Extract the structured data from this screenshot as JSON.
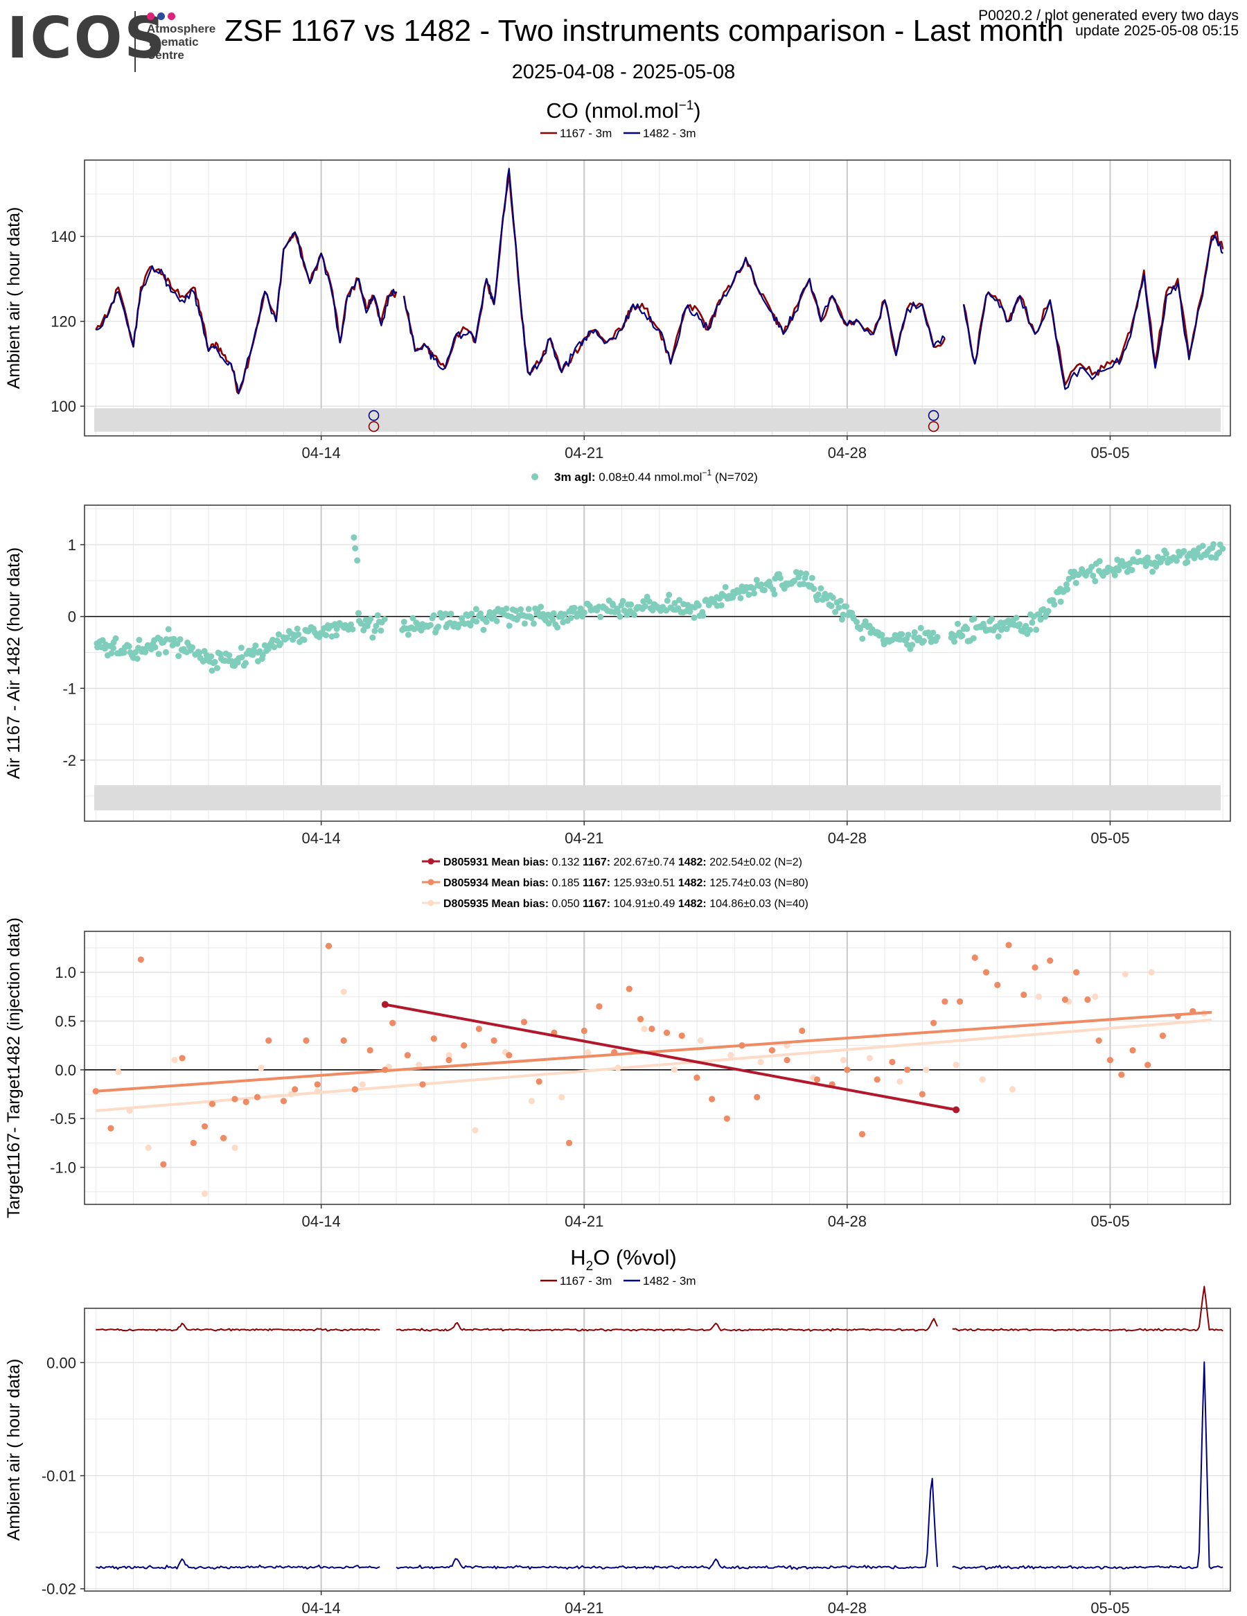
{
  "header": {
    "logo_text": "ICOS",
    "logo_sub": [
      "Atmosphere",
      "Thematic",
      "Centre"
    ],
    "logo_dot_colors": [
      "#e0227a",
      "#2c4b9b",
      "#e0227a"
    ],
    "title": "ZSF 1167 vs 1482 - Two instruments comparison - Last month",
    "info_line1": "P0020.2 / plot generated every two days",
    "info_line2": "update  2025-05-08 05:15",
    "date_range": "2025-04-08 - 2025-05-08"
  },
  "colors": {
    "i1167": "#8b0000",
    "i1482": "#000080",
    "diff": "#7fcdbb",
    "target_a": "#b2182b",
    "target_b": "#ef8a62",
    "target_c": "#fddbc7",
    "flag_band": "#dcdcdc",
    "grid": "#e8e8e8",
    "grid_major": "#c8c8c8"
  },
  "chart_data": [
    {
      "id": "co-ambient",
      "type": "line",
      "title_main": "CO (nmol.mol",
      "title_sup": "−1",
      "title_end": ")",
      "ylabel": "Ambient air ( hour data)",
      "legend": [
        {
          "label": "1167 - 3m",
          "color": "#8b0000"
        },
        {
          "label": "1482 - 3m",
          "color": "#000080"
        }
      ],
      "x_ticks": [
        "04-14",
        "04-21",
        "04-28",
        "05-05"
      ],
      "x_tick_days": [
        6,
        13,
        20,
        27
      ],
      "xlim": [
        -0.3,
        30.2
      ],
      "ylim": [
        93,
        158
      ],
      "y_ticks": [
        100,
        120,
        140
      ],
      "flag_band": [
        94,
        99.5
      ],
      "flag_markers": [
        {
          "day": 7.4,
          "y": 97.8,
          "color": "#000080"
        },
        {
          "day": 7.4,
          "y": 95.2,
          "color": "#8b0000"
        },
        {
          "day": 22.3,
          "y": 97.8,
          "color": "#000080"
        },
        {
          "day": 22.3,
          "y": 95.2,
          "color": "#8b0000"
        }
      ],
      "x_day": [
        0.0,
        0.3,
        0.6,
        1.0,
        1.2,
        1.5,
        1.8,
        2.0,
        2.3,
        2.6,
        2.8,
        3.0,
        3.2,
        3.4,
        3.6,
        3.8,
        4.1,
        4.5,
        4.8,
        5.0,
        5.3,
        5.7,
        6.0,
        6.3,
        6.5,
        6.7,
        7.0,
        7.2,
        7.4,
        7.6,
        7.8,
        8.0,
        "gap",
        8.2,
        8.5,
        8.8,
        9.0,
        9.3,
        9.6,
        9.9,
        10.1,
        10.4,
        10.6,
        10.8,
        11.0,
        11.3,
        11.5,
        11.8,
        12.1,
        12.4,
        12.7,
        13.0,
        13.3,
        13.6,
        14.0,
        14.3,
        14.6,
        15.0,
        15.3,
        15.7,
        16.0,
        16.3,
        16.6,
        16.9,
        17.3,
        17.6,
        18.0,
        18.3,
        18.6,
        19.0,
        19.3,
        19.6,
        20.0,
        20.3,
        20.7,
        21.0,
        21.3,
        21.6,
        22.0,
        22.3,
        22.6,
        "gap",
        23.1,
        23.4,
        23.7,
        24.0,
        24.3,
        24.6,
        25.0,
        25.4,
        25.8,
        26.2,
        26.6,
        27.0,
        27.3,
        27.6,
        27.9,
        28.2,
        28.5,
        28.8,
        29.1,
        29.4,
        29.7,
        29.8,
        30.0
      ],
      "series": [
        {
          "name": "1167 - 3m",
          "color": "#8b0000",
          "values": [
            118,
            121,
            128,
            114,
            128,
            133,
            131,
            128,
            126,
            128,
            122,
            113,
            115,
            112,
            110,
            103,
            112,
            127,
            120,
            137,
            141,
            129,
            136,
            127,
            115,
            126,
            130,
            123,
            126,
            120,
            126,
            127,
            null,
            126,
            113,
            114,
            112,
            109,
            117,
            118,
            115,
            130,
            124,
            141,
            155,
            125,
            108,
            110,
            116,
            108,
            112,
            116,
            118,
            115,
            118,
            124,
            123,
            118,
            110,
            123,
            123,
            118,
            125,
            128,
            135,
            128,
            122,
            117,
            123,
            130,
            120,
            126,
            119,
            120,
            117,
            125,
            112,
            123,
            124,
            114,
            116,
            null,
            124,
            110,
            126,
            125,
            120,
            126,
            117,
            125,
            105,
            110,
            108,
            110,
            112,
            120,
            132,
            110,
            127,
            130,
            112,
            125,
            140,
            141,
            137
          ]
        },
        {
          "name": "1482 - 3m",
          "color": "#000080",
          "values": [
            118,
            121,
            127,
            114,
            127,
            133,
            131,
            127,
            125,
            127,
            121,
            113,
            114,
            111,
            110,
            103,
            112,
            127,
            120,
            137,
            141,
            129,
            136,
            126,
            115,
            126,
            130,
            122,
            126,
            119,
            126,
            127,
            null,
            126,
            113,
            114,
            111,
            109,
            117,
            117,
            115,
            130,
            124,
            141,
            156,
            125,
            108,
            110,
            116,
            108,
            112,
            116,
            118,
            115,
            118,
            124,
            122,
            118,
            110,
            123,
            122,
            118,
            124,
            128,
            135,
            128,
            122,
            117,
            122,
            130,
            120,
            126,
            119,
            120,
            117,
            125,
            112,
            123,
            124,
            114,
            116,
            null,
            124,
            110,
            126,
            125,
            120,
            126,
            117,
            125,
            104,
            109,
            107,
            109,
            111,
            119,
            131,
            109,
            126,
            129,
            111,
            124,
            139,
            140,
            136
          ]
        }
      ]
    },
    {
      "id": "co-diff",
      "type": "scatter",
      "legend_label": "3m agl:",
      "legend_value": "0.08±0.44 nmol.mol",
      "legend_sup": "−1",
      "legend_n": "(N=702)",
      "ylabel": "Air 1167 - Air 1482 (hour data)",
      "x_ticks": [
        "04-14",
        "04-21",
        "04-28",
        "05-05"
      ],
      "x_tick_days": [
        6,
        13,
        20,
        27
      ],
      "xlim": [
        -0.3,
        30.2
      ],
      "ylim": [
        -2.85,
        1.55
      ],
      "y_ticks": [
        -2,
        -1,
        0,
        1
      ],
      "flag_band": [
        -2.7,
        -2.35
      ],
      "trend": {
        "x": [
          0,
          1,
          2,
          3,
          4,
          5,
          6,
          7,
          8,
          9,
          10,
          11,
          12,
          13,
          14,
          15,
          16,
          17,
          18,
          19,
          20,
          21,
          22,
          23,
          24,
          25,
          26,
          27,
          28,
          29,
          30
        ],
        "y": [
          -0.45,
          -0.45,
          -0.35,
          -0.6,
          -0.6,
          -0.3,
          -0.2,
          -0.1,
          -0.15,
          -0.1,
          -0.05,
          0.05,
          0.0,
          0.1,
          0.15,
          0.15,
          0.1,
          0.35,
          0.45,
          0.45,
          0.05,
          -0.35,
          -0.3,
          -0.2,
          -0.15,
          -0.1,
          0.55,
          0.7,
          0.75,
          0.85,
          0.9
        ],
        "spread": 0.13
      },
      "count": 702
    },
    {
      "id": "target-diff",
      "type": "scatter",
      "ylabel": "Target1167- Target1482 (injection data)",
      "x_ticks": [
        "04-14",
        "04-21",
        "04-28",
        "05-05"
      ],
      "x_tick_days": [
        6,
        13,
        20,
        27
      ],
      "xlim": [
        -0.3,
        30.2
      ],
      "ylim": [
        -1.38,
        1.42
      ],
      "y_ticks": [
        "1.0",
        "0.5",
        "0.0",
        "-0.5",
        "-1.0"
      ],
      "y_tick_values": [
        1.0,
        0.5,
        0.0,
        -0.5,
        -1.0
      ],
      "series": [
        {
          "name": "D805931",
          "mean_bias": "0.132",
          "v1167": "202.67±0.74",
          "v1482": "202.54±0.02",
          "n": "(N=2)",
          "color": "#b2182b",
          "x": [
            7.7,
            22.9
          ],
          "y": [
            0.67,
            -0.41
          ],
          "fit": [
            [
              7.7,
              0.67
            ],
            [
              22.9,
              -0.41
            ]
          ]
        },
        {
          "name": "D805934",
          "mean_bias": "0.185",
          "v1167": "125.93±0.51",
          "v1482": "125.74±0.03",
          "n": "(N=80)",
          "color": "#ef8a62",
          "x": [
            0.0,
            0.4,
            1.2,
            1.8,
            2.3,
            2.6,
            2.9,
            3.1,
            3.4,
            3.7,
            4.0,
            4.3,
            4.6,
            5.0,
            5.3,
            5.6,
            5.9,
            6.2,
            6.6,
            6.9,
            7.3,
            7.7,
            7.9,
            8.3,
            8.7,
            9.0,
            9.4,
            9.8,
            10.2,
            10.6,
            11.0,
            11.4,
            11.8,
            12.2,
            12.6,
            13.0,
            13.4,
            13.8,
            14.2,
            14.5,
            14.8,
            15.2,
            15.6,
            16.0,
            16.4,
            16.8,
            17.2,
            17.6,
            18.0,
            18.4,
            18.8,
            19.2,
            19.6,
            20.0,
            20.4,
            20.8,
            21.2,
            21.6,
            22.0,
            22.3,
            22.6,
            23.0,
            23.4,
            23.7,
            24.0,
            24.3,
            24.7,
            25.0,
            25.4,
            25.8,
            26.1,
            26.4,
            26.7,
            27.0,
            27.3,
            27.6,
            28.0,
            28.4,
            28.8,
            29.2
          ],
          "y": [
            -0.22,
            -0.6,
            1.13,
            -0.97,
            0.12,
            -0.75,
            -0.58,
            -0.35,
            -0.7,
            -0.3,
            -0.33,
            -0.28,
            0.3,
            -0.32,
            -0.2,
            0.3,
            -0.15,
            1.27,
            0.3,
            -0.2,
            0.2,
            0.0,
            0.48,
            0.15,
            -0.15,
            0.32,
            0.1,
            0.25,
            0.42,
            0.3,
            0.15,
            0.49,
            -0.12,
            0.38,
            -0.75,
            0.4,
            0.65,
            0.18,
            0.83,
            0.52,
            0.42,
            0.38,
            0.35,
            -0.08,
            -0.3,
            -0.5,
            0.25,
            -0.28,
            0.2,
            0.1,
            0.4,
            -0.1,
            -0.15,
            0.0,
            -0.66,
            -0.1,
            0.08,
            0.0,
            -0.25,
            0.48,
            0.7,
            0.7,
            1.15,
            1.0,
            0.87,
            1.28,
            0.77,
            1.05,
            1.12,
            0.72,
            1.0,
            0.72,
            0.3,
            0.1,
            -0.05,
            0.2,
            0.05,
            0.35,
            0.55,
            0.6
          ],
          "fit": [
            [
              0.0,
              -0.22
            ],
            [
              29.7,
              0.59
            ]
          ]
        },
        {
          "name": "D805935",
          "mean_bias": "0.050",
          "v1167": "104.91±0.49",
          "v1482": "104.86±0.03",
          "n": "(N=40)",
          "color": "#fddbc7",
          "x": [
            0.6,
            0.9,
            1.4,
            2.1,
            2.9,
            3.7,
            4.4,
            5.2,
            5.9,
            6.6,
            7.1,
            7.8,
            8.6,
            9.4,
            10.1,
            10.9,
            11.6,
            12.4,
            13.1,
            13.9,
            14.6,
            15.4,
            16.1,
            16.9,
            17.7,
            18.4,
            19.1,
            19.9,
            20.6,
            21.4,
            22.1,
            22.9,
            23.6,
            24.4,
            25.1,
            25.9,
            26.6,
            27.4,
            28.1,
            29.5
          ],
          "y": [
            -0.02,
            -0.42,
            -0.8,
            0.1,
            -1.27,
            -0.8,
            0.02,
            -0.25,
            -0.22,
            0.8,
            -0.15,
            0.03,
            0.05,
            0.15,
            -0.62,
            0.18,
            -0.32,
            -0.28,
            0.18,
            0.02,
            0.42,
            0.0,
            0.3,
            0.15,
            0.08,
            0.25,
            -0.08,
            0.1,
            0.12,
            -0.12,
            0.0,
            0.05,
            -0.1,
            -0.2,
            0.75,
            0.7,
            0.75,
            0.98,
            1.0,
            0.58
          ],
          "fit": [
            [
              0.0,
              -0.42
            ],
            [
              29.7,
              0.51
            ]
          ]
        }
      ]
    },
    {
      "id": "h2o-ambient",
      "type": "line",
      "title_pre": "H",
      "title_sub": "2",
      "title_post": "O (%vol)",
      "ylabel": "Ambient air ( hour data)",
      "legend": [
        {
          "label": "1167 - 3m",
          "color": "#8b0000"
        },
        {
          "label": "1482 - 3m",
          "color": "#000080"
        }
      ],
      "x_ticks": [
        "04-14",
        "04-21",
        "04-28",
        "05-05"
      ],
      "x_tick_days": [
        6,
        13,
        20,
        27
      ],
      "xlim": [
        -0.3,
        30.2
      ],
      "ylim": [
        -0.0202,
        0.0048
      ],
      "y_ticks": [
        "0.00",
        "-0.01",
        "-0.02"
      ],
      "y_tick_values": [
        0.0,
        -0.01,
        -0.02
      ],
      "series": [
        {
          "name": "1167 - 3m",
          "color": "#8b0000",
          "base": 0.0029,
          "noise": 8e-05,
          "segments": [
            [
              0.0,
              7.6
            ],
            [
              8.0,
              22.4
            ],
            [
              22.8,
              30.0
            ]
          ],
          "spikes": [
            [
              2.3,
              0.0035
            ],
            [
              9.6,
              0.0036
            ],
            [
              16.5,
              0.0035
            ],
            [
              22.3,
              0.004
            ],
            [
              29.5,
              0.0068
            ]
          ]
        },
        {
          "name": "1482 - 3m",
          "color": "#000080",
          "base": -0.0181,
          "noise": 0.00012,
          "segments": [
            [
              0.0,
              7.6
            ],
            [
              8.0,
              22.4
            ],
            [
              22.8,
              30.0
            ]
          ],
          "spikes": [
            [
              2.3,
              -0.0173
            ],
            [
              9.6,
              -0.0172
            ],
            [
              16.5,
              -0.0173
            ],
            [
              22.25,
              -0.0094
            ],
            [
              29.5,
              0.0008
            ]
          ]
        }
      ]
    }
  ]
}
